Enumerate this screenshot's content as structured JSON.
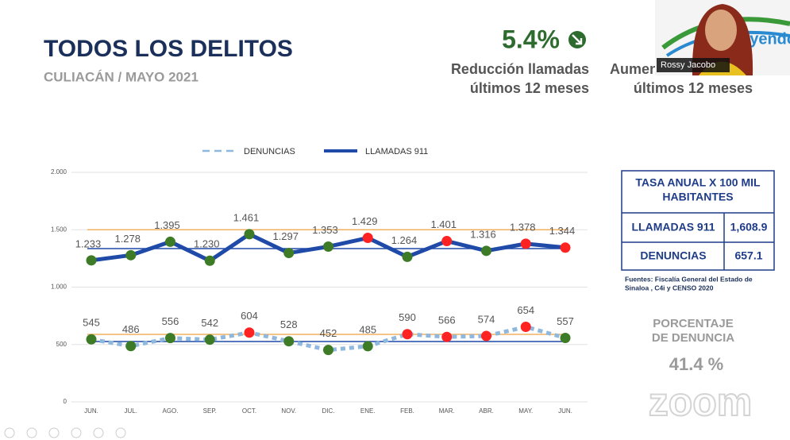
{
  "header": {
    "title": "TODOS LOS DELITOS",
    "subtitle": "CULIACÁN / MAYO 2021"
  },
  "kpi_left": {
    "value": "5.4%",
    "lines": [
      "Reducción llamadas",
      "últimos 12 meses"
    ]
  },
  "kpi_right": {
    "lines": [
      "Aumen",
      "últimos 12 meses"
    ]
  },
  "webcam": {
    "name": "Rossy Jacobo",
    "logo_text": "uyendo"
  },
  "rate_table": {
    "header_lines": [
      "TASA ANUAL X 100 MIL",
      "HABITANTES"
    ],
    "rows": [
      [
        "LLAMADAS 911",
        "1,608.9"
      ],
      [
        "DENUNCIAS",
        "657.1"
      ]
    ],
    "source_lines": [
      "Fuentes: Fiscalía General del Estado de",
      "Sinaloa , C4i y CENSO 2020"
    ]
  },
  "percentage": {
    "label_lines": [
      "PORCENTAJE",
      "DE DENUNCIA"
    ],
    "value": "41.4 %"
  },
  "watermark": "zoom",
  "chart_data": {
    "type": "line",
    "categories": [
      "JUN.",
      "JUL.",
      "AGO.",
      "SEP.",
      "OCT.",
      "NOV.",
      "DIC.",
      "ENE.",
      "FEB.",
      "MAR.",
      "ABR.",
      "MAY.",
      "JUN."
    ],
    "ylim": [
      0,
      2000
    ],
    "yticks": [
      0,
      500,
      {
        "value": 1000,
        "label": "1.000"
      },
      {
        "value": 1500,
        "label": "1.500"
      },
      {
        "value": 2000,
        "label": "2.000"
      }
    ],
    "grid": true,
    "series": [
      {
        "name": "DENUNCIAS",
        "color": "#8fb8de",
        "style": "dotted",
        "values": [
          545,
          486,
          556,
          542,
          604,
          528,
          452,
          485,
          590,
          566,
          574,
          654,
          557
        ],
        "marker_colors": [
          "#3e7b27",
          "#3e7b27",
          "#3e7b27",
          "#3e7b27",
          "#f22",
          "#3e7b27",
          "#3e7b27",
          "#3e7b27",
          "#f22",
          "#f22",
          "#f22",
          "#f22",
          "#3e7b27"
        ]
      },
      {
        "name": "LLAMADAS 911",
        "color": "#1f4aa8",
        "style": "solid",
        "values": [
          1233,
          1278,
          1395,
          1230,
          1461,
          1297,
          1353,
          1429,
          1264,
          1401,
          1316,
          1378,
          1344
        ],
        "value_labels": [
          "1.233",
          "1.278",
          "1.395",
          "1.230",
          "1.461",
          "1.297",
          "1.353",
          "1.429",
          "1.264",
          "1.401",
          "1.316",
          "1.378",
          "1.344"
        ],
        "marker_colors": [
          "#3e7b27",
          "#3e7b27",
          "#3e7b27",
          "#3e7b27",
          "#3e7b27",
          "#3e7b27",
          "#3e7b27",
          "#f22",
          "#3e7b27",
          "#f22",
          "#3e7b27",
          "#f22",
          "#f22"
        ]
      }
    ],
    "reference_lines": [
      {
        "value": 1500,
        "color": "#f0b060"
      },
      {
        "value": 1336,
        "color": "#1f4aa8"
      },
      {
        "value": 588,
        "color": "#f0b060"
      },
      {
        "value": 526,
        "color": "#1f4aa8"
      }
    ]
  }
}
